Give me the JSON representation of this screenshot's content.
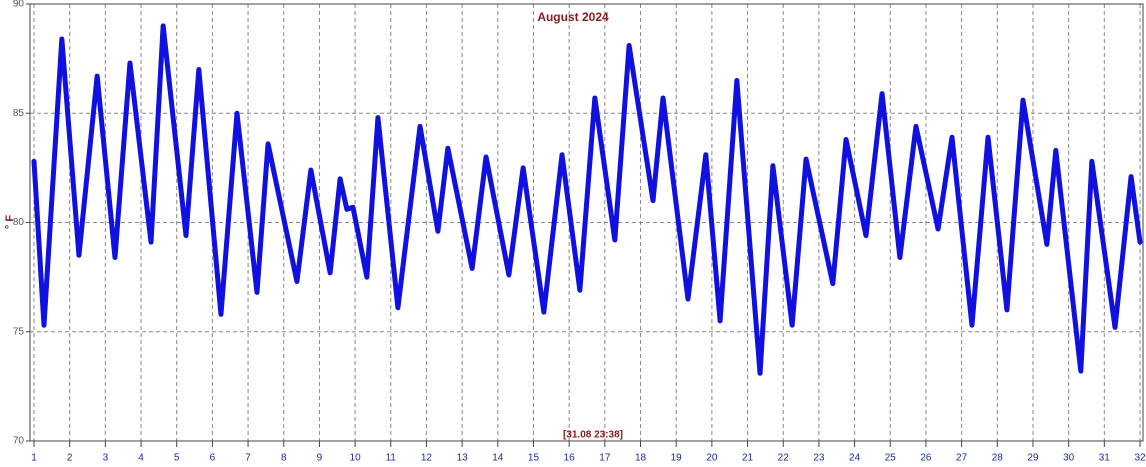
{
  "chart_data": {
    "type": "line",
    "title": "August 2024",
    "ylabel": "° F",
    "annotation": "[31.08 23:38]",
    "xlim": [
      1,
      32
    ],
    "xticks": [
      1,
      2,
      3,
      4,
      5,
      6,
      7,
      8,
      9,
      10,
      11,
      12,
      13,
      14,
      15,
      16,
      17,
      18,
      19,
      20,
      21,
      22,
      23,
      24,
      25,
      26,
      27,
      28,
      29,
      30,
      31,
      32
    ],
    "ylim": [
      70,
      90
    ],
    "yticks": [
      70,
      75,
      80,
      85,
      90
    ],
    "grid": true,
    "series": [
      {
        "color": "#1010e0",
        "x": [
          1.0,
          1.28,
          1.78,
          2.26,
          2.77,
          3.27,
          3.69,
          4.28,
          4.62,
          5.26,
          5.62,
          6.24,
          6.69,
          7.25,
          7.56,
          8.37,
          8.76,
          9.3,
          9.58,
          9.77,
          9.94,
          10.33,
          10.64,
          11.2,
          11.82,
          12.32,
          12.6,
          13.28,
          13.67,
          14.31,
          14.71,
          15.29,
          15.8,
          16.3,
          16.72,
          17.28,
          17.68,
          18.35,
          18.63,
          19.33,
          19.83,
          20.23,
          20.7,
          21.35,
          21.71,
          22.25,
          22.64,
          23.39,
          23.76,
          24.32,
          24.77,
          25.27,
          25.72,
          26.34,
          26.73,
          27.29,
          27.74,
          28.27,
          28.72,
          29.39,
          29.64,
          30.34,
          30.65,
          31.3,
          31.75,
          32.0
        ],
        "values": [
          82.8,
          75.3,
          88.4,
          78.5,
          86.7,
          78.4,
          87.3,
          79.1,
          89.0,
          79.4,
          87.0,
          75.8,
          85.0,
          76.8,
          83.6,
          77.3,
          82.4,
          77.7,
          82.0,
          80.6,
          80.7,
          77.5,
          84.8,
          76.1,
          84.4,
          79.6,
          83.4,
          77.9,
          83.0,
          77.6,
          82.5,
          75.9,
          83.1,
          76.9,
          85.7,
          79.2,
          88.1,
          81.0,
          85.7,
          76.5,
          83.1,
          75.5,
          86.5,
          73.1,
          82.6,
          75.3,
          82.9,
          77.2,
          83.8,
          79.4,
          85.9,
          78.4,
          84.4,
          79.7,
          83.9,
          75.3,
          83.9,
          76.0,
          85.6,
          79.0,
          83.3,
          73.2,
          82.8,
          75.2,
          82.1,
          79.1
        ]
      }
    ]
  }
}
